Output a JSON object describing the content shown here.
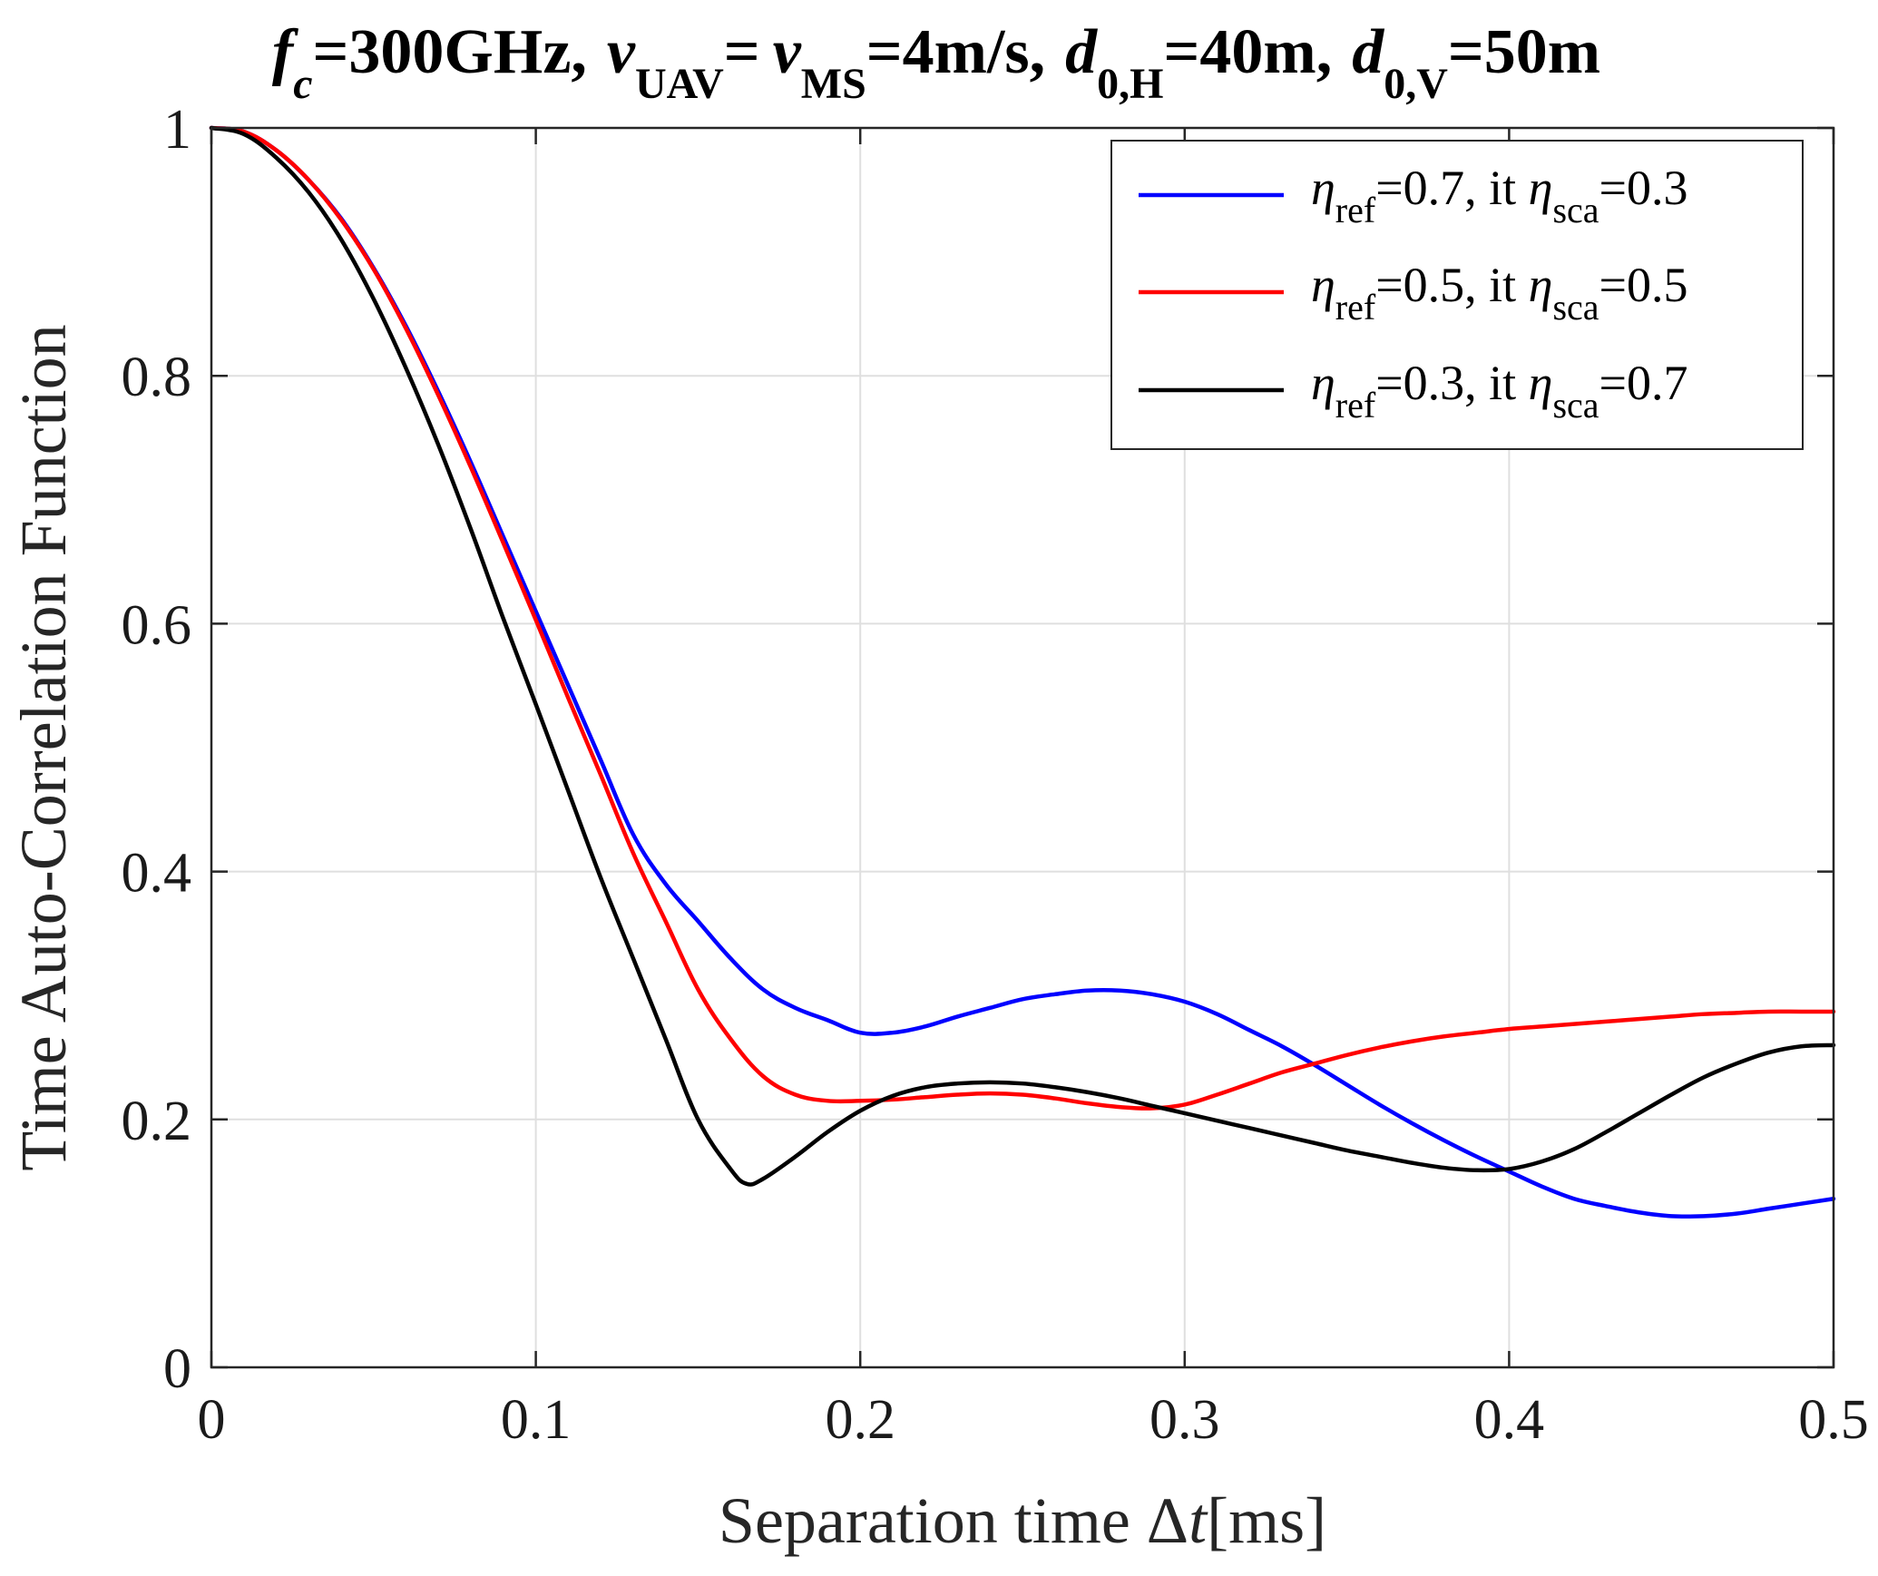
{
  "chart_data": {
    "type": "line",
    "title_parts": {
      "fc_var": "f",
      "fc_sub": "c",
      "fc_val": "=300GHz,",
      "v1_var": "v",
      "v1_sub": "UAV",
      "v_eq": "=",
      "v2_var": "v",
      "v2_sub": "MS",
      "v_val": "=4m/s,",
      "dh_var": "d",
      "dh_sub": "0,H",
      "dh_val": "=40m,",
      "dv_var": "d",
      "dv_sub": "0,V",
      "dv_val": "=50m"
    },
    "xlabel_prefix": "Separation time Δ",
    "xlabel_var": "t",
    "xlabel_suffix": "[ms]",
    "ylabel": "Time Auto-Correlation Function",
    "xlim": [
      0,
      0.5
    ],
    "ylim": [
      0,
      1
    ],
    "xticks": [
      0,
      0.1,
      0.2,
      0.3,
      0.4,
      0.5
    ],
    "xtick_labels": [
      "0",
      "0.1",
      "0.2",
      "0.3",
      "0.4",
      "0.5"
    ],
    "yticks": [
      0,
      0.2,
      0.4,
      0.6,
      0.8,
      1
    ],
    "ytick_labels": [
      "0",
      "0.2",
      "0.4",
      "0.6",
      "0.8",
      "1"
    ],
    "grid": true,
    "legend_position": "top-right",
    "series": [
      {
        "name": "η_ref=0.7, it η_sca=0.3",
        "legend": {
          "eta1": "η",
          "sub1": "ref",
          "mid": "=0.7, it ",
          "eta2": "η",
          "sub2": "sca",
          "end": "=0.3"
        },
        "color": "#0000ff",
        "x": [
          0,
          0.01,
          0.02,
          0.03,
          0.04,
          0.05,
          0.06,
          0.07,
          0.08,
          0.09,
          0.1,
          0.11,
          0.12,
          0.13,
          0.14,
          0.15,
          0.16,
          0.17,
          0.18,
          0.19,
          0.2,
          0.21,
          0.22,
          0.23,
          0.24,
          0.25,
          0.26,
          0.27,
          0.28,
          0.29,
          0.3,
          0.31,
          0.32,
          0.33,
          0.34,
          0.35,
          0.36,
          0.37,
          0.38,
          0.39,
          0.4,
          0.41,
          0.42,
          0.43,
          0.44,
          0.45,
          0.46,
          0.47,
          0.48,
          0.49,
          0.5
        ],
        "y": [
          1.0,
          0.997,
          0.982,
          0.958,
          0.927,
          0.887,
          0.84,
          0.787,
          0.73,
          0.67,
          0.61,
          0.55,
          0.49,
          0.43,
          0.39,
          0.36,
          0.33,
          0.305,
          0.29,
          0.28,
          0.27,
          0.27,
          0.275,
          0.283,
          0.29,
          0.297,
          0.301,
          0.304,
          0.304,
          0.301,
          0.295,
          0.285,
          0.272,
          0.259,
          0.244,
          0.228,
          0.212,
          0.197,
          0.183,
          0.17,
          0.158,
          0.146,
          0.136,
          0.13,
          0.125,
          0.122,
          0.122,
          0.124,
          0.128,
          0.132,
          0.136
        ]
      },
      {
        "name": "η_ref=0.5, it η_sca=0.5",
        "legend": {
          "eta1": "η",
          "sub1": "ref",
          "mid": "=0.5, it ",
          "eta2": "η",
          "sub2": "sca",
          "end": "=0.5"
        },
        "color": "#ff0000",
        "x": [
          0,
          0.01,
          0.02,
          0.03,
          0.04,
          0.05,
          0.06,
          0.07,
          0.08,
          0.09,
          0.1,
          0.11,
          0.12,
          0.13,
          0.14,
          0.15,
          0.16,
          0.17,
          0.18,
          0.19,
          0.2,
          0.21,
          0.22,
          0.23,
          0.24,
          0.25,
          0.26,
          0.27,
          0.28,
          0.29,
          0.3,
          0.31,
          0.32,
          0.33,
          0.34,
          0.35,
          0.36,
          0.37,
          0.38,
          0.39,
          0.4,
          0.41,
          0.42,
          0.43,
          0.44,
          0.45,
          0.46,
          0.47,
          0.48,
          0.49,
          0.5
        ],
        "y": [
          1.0,
          0.997,
          0.982,
          0.958,
          0.926,
          0.886,
          0.838,
          0.784,
          0.726,
          0.665,
          0.603,
          0.54,
          0.478,
          0.415,
          0.36,
          0.305,
          0.265,
          0.235,
          0.22,
          0.215,
          0.215,
          0.216,
          0.218,
          0.22,
          0.221,
          0.22,
          0.217,
          0.213,
          0.21,
          0.209,
          0.212,
          0.22,
          0.229,
          0.238,
          0.245,
          0.252,
          0.258,
          0.263,
          0.267,
          0.27,
          0.273,
          0.275,
          0.277,
          0.279,
          0.281,
          0.283,
          0.285,
          0.286,
          0.287,
          0.287,
          0.287
        ]
      },
      {
        "name": "η_ref=0.3, it η_sca=0.7",
        "legend": {
          "eta1": "η",
          "sub1": "ref",
          "mid": "=0.3, it ",
          "eta2": "η",
          "sub2": "sca",
          "end": "=0.7"
        },
        "color": "#000000",
        "x": [
          0,
          0.01,
          0.02,
          0.03,
          0.04,
          0.05,
          0.06,
          0.07,
          0.08,
          0.09,
          0.1,
          0.11,
          0.12,
          0.13,
          0.14,
          0.15,
          0.16,
          0.165,
          0.17,
          0.18,
          0.19,
          0.2,
          0.21,
          0.22,
          0.23,
          0.24,
          0.25,
          0.26,
          0.27,
          0.28,
          0.29,
          0.3,
          0.31,
          0.32,
          0.33,
          0.34,
          0.35,
          0.36,
          0.37,
          0.38,
          0.39,
          0.4,
          0.41,
          0.42,
          0.43,
          0.44,
          0.45,
          0.46,
          0.47,
          0.48,
          0.49,
          0.5
        ],
        "y": [
          1.0,
          0.995,
          0.976,
          0.948,
          0.91,
          0.862,
          0.806,
          0.744,
          0.676,
          0.604,
          0.535,
          0.465,
          0.395,
          0.33,
          0.265,
          0.2,
          0.16,
          0.148,
          0.152,
          0.17,
          0.19,
          0.207,
          0.219,
          0.226,
          0.229,
          0.23,
          0.229,
          0.226,
          0.222,
          0.217,
          0.211,
          0.205,
          0.199,
          0.193,
          0.187,
          0.181,
          0.175,
          0.17,
          0.165,
          0.161,
          0.159,
          0.16,
          0.166,
          0.176,
          0.19,
          0.205,
          0.22,
          0.234,
          0.245,
          0.254,
          0.259,
          0.26
        ]
      }
    ]
  }
}
